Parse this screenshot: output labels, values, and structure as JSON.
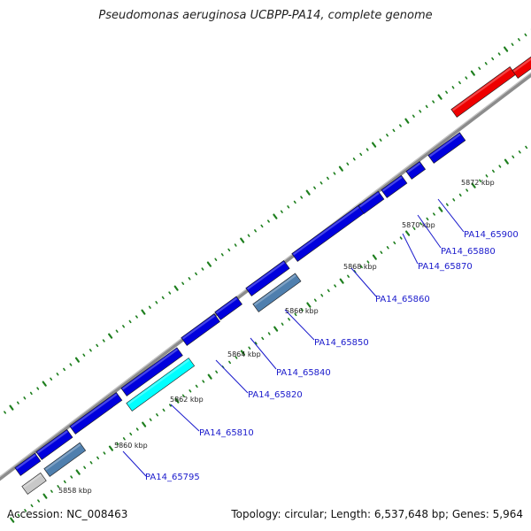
{
  "title": "Pseudomonas aeruginosa UCBPP-PA14, complete genome",
  "footer": {
    "accession": "Accession: NC_008463",
    "summary": "Topology: circular; Length: 6,537,648 bp; Genes: 5,964"
  },
  "colors": {
    "gene_blue": "#0000dd",
    "gene_steel": "#4f7fae",
    "gene_cyan": "#00ffff",
    "gene_red": "#ee0000",
    "gene_gray": "#c8c8c8",
    "backbone": "#8c8c8c",
    "tick_green": "#1e7f1e",
    "label_blue": "#1a1acc"
  },
  "kbp_labels": [
    "5858 kbp",
    "5860 kbp",
    "5862 kbp",
    "5864 kbp",
    "5866 kbp",
    "5868 kbp",
    "5870 kbp",
    "5872 kbp"
  ],
  "gene_labels": [
    "PA14_65795",
    "PA14_65810",
    "PA14_65820",
    "PA14_65840",
    "PA14_65850",
    "PA14_65860",
    "PA14_65870",
    "PA14_65880",
    "PA14_65900"
  ]
}
